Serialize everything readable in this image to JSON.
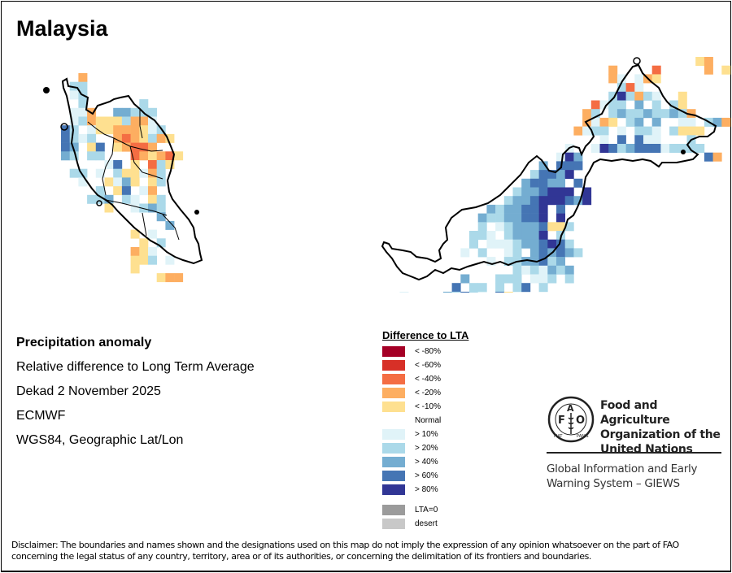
{
  "title": "Malaysia",
  "info": {
    "heading": "Precipitation anomaly",
    "line1": "Relative difference to Long Term Average",
    "line2": "Dekad 2 November 2025",
    "line3": "ECMWF",
    "line4": "WGS84, Geographic Lat/Lon"
  },
  "legend": {
    "title": "Difference to LTA",
    "items": [
      {
        "label": "< -80%",
        "color": "#a50026",
        "code": "A"
      },
      {
        "label": "< -60%",
        "color": "#d73027",
        "code": "B"
      },
      {
        "label": "< -40%",
        "color": "#f46d43",
        "code": "C"
      },
      {
        "label": "< -20%",
        "color": "#fdae61",
        "code": "D"
      },
      {
        "label": "< -10%",
        "color": "#fee090",
        "code": "E"
      },
      {
        "label": "Normal",
        "color": null,
        "code": "."
      },
      {
        "label": "> 10%",
        "color": "#e0f3f8",
        "code": "1"
      },
      {
        "label": "> 20%",
        "color": "#abd9e9",
        "code": "2"
      },
      {
        "label": "> 40%",
        "color": "#74add1",
        "code": "4"
      },
      {
        "label": "> 60%",
        "color": "#4575b4",
        "code": "6"
      },
      {
        "label": "> 80%",
        "color": "#313695",
        "code": "8"
      }
    ],
    "extra": [
      {
        "label": "LTA=0",
        "color": "#9b9b9b"
      },
      {
        "label": "desert",
        "color": "#c8c8c8"
      }
    ]
  },
  "map": {
    "peninsula_grid": [
      "..D..........",
      ".22..........",
      ".12..........",
      "..2......2...",
      ".11D..44222..",
      ".12DEEE2DD1..",
      "62.1EEDDDE12.",
      "6212..DCDE2DE",
      "64.E6.EDCCD..",
      "42.22...CDEDCE",
      ".....16.E.C2E.",
      ".22.1.2EE1D2..",
      "..1..E14E.E2..",
      "....2.E6.1D...",
      "...224.21.E2..",
      ".....E..1242..",
      "...........4..",
      "............4.",
      "........E.1...",
      ".........E.2..",
      "........DE1...",
      "........EE2.1.",
      "........E.....",
      "...........EDD"
    ],
    "borneo_grid": [
      "....................................ED....",
      "..........................D....C.....D.E..",
      "..........................D1.1DE..........",
      "...........................2C1............",
      "..........................282D21..E.......",
      "........................C122.4.2.2E.......",
      ".......................D2.242242242D......",
      ".......................D1DE.24.4..11.24D..",
      "......................D122.1.221.2EEE.....",
      ".........................1.6.611...2......",
      ".....................1..1862466612222.....",
      "....................184..............6D....",
      "..................4.666.................",
      ".................26648..................",
      "................46644.6.................",
      "...............2446888.8................",
      "..............2446888648................",
      "............4244668.6...................",
      "...........42244668.8...................",
      "...........2.124446EE2..................",
      "..........221.24448.2...................",
      "..........2.1112446862..................",
      ".........1.2..12.464642.................",
      "............1.2244624...................",
      "...............2121424..................",
      ".........4...222.112.2..................",
      "........6.22.2.26.2.....................",
      "..1....42621.6E.........................",
      "..4226.66..22..........................."
    ]
  },
  "logo": {
    "org_name_line1": "Food and Agriculture",
    "org_name_line2": "Organization of the",
    "org_name_line3": "United Nations",
    "emblem_letters": "FAO",
    "emblem_motto": "FIAT PANIS",
    "program_line1": "Global Information and Early",
    "program_line2": "Warning System – GIEWS"
  },
  "disclaimer": "Disclaimer: The boundaries and names shown and the designations used on this map do not imply the expression of any opinion whatsoever on the part of FAO concerning the legal status of any country, territory, area or of its authorities, or concerning the delimitation of its frontiers and boundaries."
}
